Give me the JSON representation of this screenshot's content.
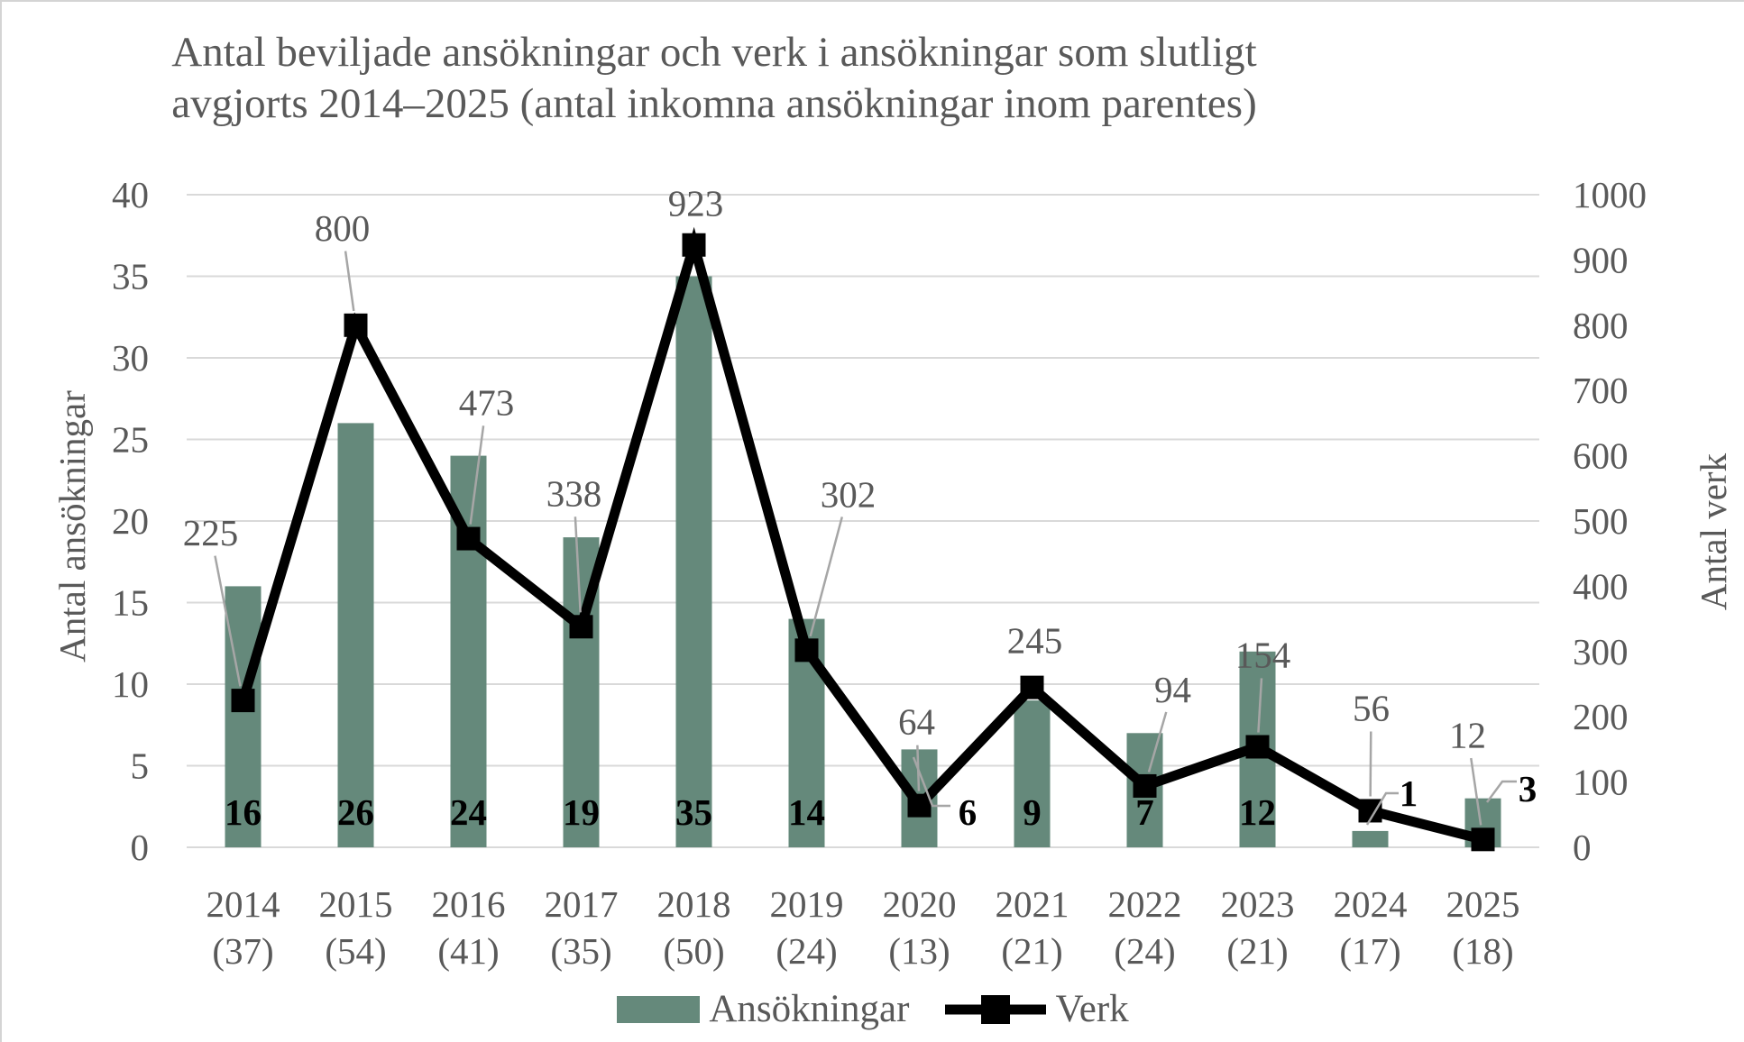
{
  "title": {
    "line1": "Antal beviljade ansökningar och verk i ansökningar som slutligt",
    "line2": "avgjorts 2014–2025 (antal inkomna ansökningar inom parentes)"
  },
  "left_axis": {
    "title": "Antal ansökningar",
    "ticks": [
      0,
      5,
      10,
      15,
      20,
      25,
      30,
      35,
      40
    ],
    "max": 40
  },
  "right_axis": {
    "title": "Antal verk",
    "ticks": [
      0,
      100,
      200,
      300,
      400,
      500,
      600,
      700,
      800,
      900,
      1000
    ],
    "max": 1000
  },
  "legend": {
    "bar_label": "Ansökningar",
    "line_label": "Verk"
  },
  "colors": {
    "bar": "#65897b",
    "line": "#000000",
    "grid": "#d9d9d9",
    "text": "#595959",
    "leader": "#a6a6a6",
    "bar_value_label": "#000000"
  },
  "chart_data": {
    "type": "bar+line",
    "title": "Antal beviljade ansökningar och verk i ansökningar som slutligt avgjorts 2014–2025 (antal inkomna ansökningar inom parentes)",
    "categories": [
      "2014",
      "2015",
      "2016",
      "2017",
      "2018",
      "2019",
      "2020",
      "2021",
      "2022",
      "2023",
      "2024",
      "2025"
    ],
    "categories_sub": [
      "(37)",
      "(54)",
      "(41)",
      "(35)",
      "(50)",
      "(24)",
      "(13)",
      "(21)",
      "(24)",
      "(21)",
      "(17)",
      "(18)"
    ],
    "series": [
      {
        "name": "Ansökningar",
        "type": "bar",
        "axis": "left",
        "values": [
          16,
          26,
          24,
          19,
          35,
          14,
          6,
          9,
          7,
          12,
          1,
          3
        ]
      },
      {
        "name": "Verk",
        "type": "line",
        "axis": "right",
        "values": [
          225,
          800,
          473,
          338,
          923,
          302,
          64,
          245,
          94,
          154,
          56,
          12
        ]
      }
    ],
    "left_ylim": [
      0,
      40
    ],
    "right_ylim": [
      0,
      1000
    ],
    "grid": true,
    "legend_position": "bottom"
  }
}
